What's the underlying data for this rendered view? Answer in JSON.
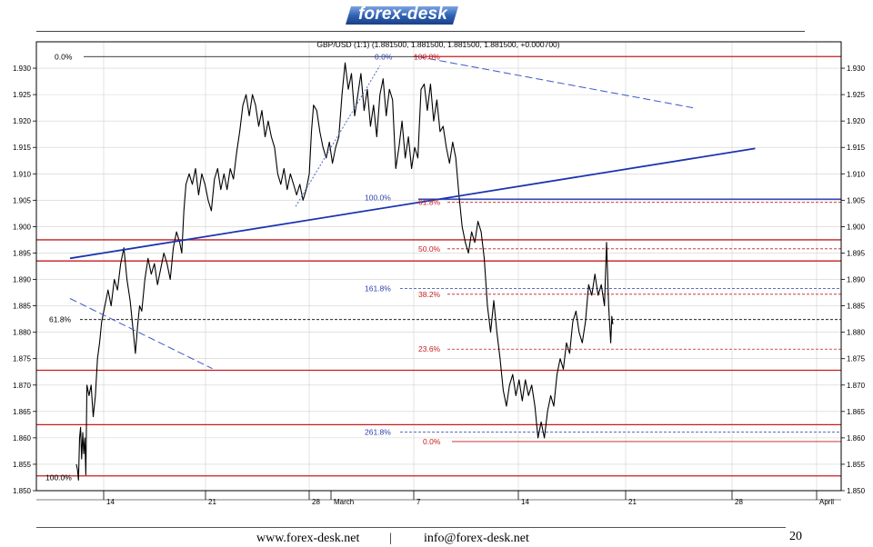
{
  "header": {
    "logo_text": "forex-desk",
    "logo_color": "#2f63b5"
  },
  "footer": {
    "website": "www.forex-desk.net",
    "separator": "|",
    "email": "info@forex-desk.net",
    "page_number": "20"
  },
  "chart_data": {
    "type": "line",
    "title": "GBP/USD (1:1) (1.881500, 1.881500, 1.881500, 1.881500, +0.000700)",
    "x_labels": [
      "14",
      "21",
      "28",
      "March",
      "7",
      "14",
      "21",
      "28",
      "April"
    ],
    "ylim": [
      1.85,
      1.935
    ],
    "y_ticks": [
      1.85,
      1.855,
      1.86,
      1.865,
      1.87,
      1.875,
      1.88,
      1.885,
      1.89,
      1.895,
      1.9,
      1.905,
      1.91,
      1.915,
      1.92,
      1.925,
      1.93
    ],
    "grid": true,
    "series": [
      {
        "color": "#000000",
        "points": [
          [
            0.0,
            1.855
          ],
          [
            0.01,
            1.854
          ],
          [
            0.02,
            1.852
          ],
          [
            0.03,
            1.86
          ],
          [
            0.04,
            1.862
          ],
          [
            0.05,
            1.856
          ],
          [
            0.06,
            1.861
          ],
          [
            0.07,
            1.857
          ],
          [
            0.08,
            1.86
          ],
          [
            0.09,
            1.853
          ],
          [
            0.1,
            1.87
          ],
          [
            0.12,
            1.868
          ],
          [
            0.14,
            1.87
          ],
          [
            0.16,
            1.864
          ],
          [
            0.18,
            1.868
          ],
          [
            0.2,
            1.875
          ],
          [
            0.22,
            1.878
          ],
          [
            0.24,
            1.882
          ],
          [
            0.27,
            1.885
          ],
          [
            0.3,
            1.888
          ],
          [
            0.33,
            1.885
          ],
          [
            0.36,
            1.89
          ],
          [
            0.39,
            1.888
          ],
          [
            0.42,
            1.893
          ],
          [
            0.45,
            1.896
          ],
          [
            0.48,
            1.89
          ],
          [
            0.51,
            1.886
          ],
          [
            0.54,
            1.88
          ],
          [
            0.56,
            1.876
          ],
          [
            0.58,
            1.881
          ],
          [
            0.6,
            1.885
          ],
          [
            0.62,
            1.884
          ],
          [
            0.65,
            1.89
          ],
          [
            0.68,
            1.894
          ],
          [
            0.71,
            1.891
          ],
          [
            0.74,
            1.893
          ],
          [
            0.77,
            1.889
          ],
          [
            0.8,
            1.892
          ],
          [
            0.83,
            1.895
          ],
          [
            0.86,
            1.893
          ],
          [
            0.89,
            1.89
          ],
          [
            0.92,
            1.896
          ],
          [
            0.95,
            1.899
          ],
          [
            0.98,
            1.897
          ],
          [
            1.0,
            1.895
          ],
          [
            1.02,
            1.903
          ],
          [
            1.04,
            1.908
          ],
          [
            1.07,
            1.91
          ],
          [
            1.1,
            1.908
          ],
          [
            1.13,
            1.911
          ],
          [
            1.16,
            1.906
          ],
          [
            1.19,
            1.91
          ],
          [
            1.22,
            1.908
          ],
          [
            1.25,
            1.905
          ],
          [
            1.28,
            1.903
          ],
          [
            1.31,
            1.909
          ],
          [
            1.34,
            1.911
          ],
          [
            1.37,
            1.907
          ],
          [
            1.4,
            1.91
          ],
          [
            1.43,
            1.907
          ],
          [
            1.46,
            1.911
          ],
          [
            1.49,
            1.909
          ],
          [
            1.52,
            1.914
          ],
          [
            1.55,
            1.918
          ],
          [
            1.58,
            1.923
          ],
          [
            1.61,
            1.925
          ],
          [
            1.64,
            1.921
          ],
          [
            1.67,
            1.925
          ],
          [
            1.7,
            1.923
          ],
          [
            1.73,
            1.919
          ],
          [
            1.76,
            1.922
          ],
          [
            1.79,
            1.917
          ],
          [
            1.82,
            1.92
          ],
          [
            1.85,
            1.917
          ],
          [
            1.88,
            1.915
          ],
          [
            1.91,
            1.91
          ],
          [
            1.94,
            1.908
          ],
          [
            1.97,
            1.911
          ],
          [
            2.0,
            1.907
          ],
          [
            2.03,
            1.91
          ],
          [
            2.06,
            1.908
          ],
          [
            2.09,
            1.906
          ],
          [
            2.12,
            1.908
          ],
          [
            2.15,
            1.905
          ],
          [
            2.18,
            1.907
          ],
          [
            2.21,
            1.91
          ],
          [
            2.23,
            1.918
          ],
          [
            2.25,
            1.923
          ],
          [
            2.28,
            1.922
          ],
          [
            2.31,
            1.918
          ],
          [
            2.34,
            1.915
          ],
          [
            2.37,
            1.913
          ],
          [
            2.4,
            1.916
          ],
          [
            2.43,
            1.912
          ],
          [
            2.46,
            1.915
          ],
          [
            2.49,
            1.917
          ],
          [
            2.52,
            1.925
          ],
          [
            2.55,
            1.931
          ],
          [
            2.58,
            1.926
          ],
          [
            2.61,
            1.929
          ],
          [
            2.64,
            1.921
          ],
          [
            2.67,
            1.925
          ],
          [
            2.7,
            1.929
          ],
          [
            2.73,
            1.922
          ],
          [
            2.76,
            1.926
          ],
          [
            2.79,
            1.919
          ],
          [
            2.82,
            1.923
          ],
          [
            2.85,
            1.917
          ],
          [
            2.88,
            1.925
          ],
          [
            2.91,
            1.928
          ],
          [
            2.94,
            1.921
          ],
          [
            2.97,
            1.926
          ],
          [
            3.0,
            1.924
          ],
          [
            3.03,
            1.911
          ],
          [
            3.06,
            1.915
          ],
          [
            3.09,
            1.92
          ],
          [
            3.12,
            1.913
          ],
          [
            3.15,
            1.917
          ],
          [
            3.18,
            1.911
          ],
          [
            3.21,
            1.915
          ],
          [
            3.24,
            1.913
          ],
          [
            3.27,
            1.926
          ],
          [
            3.3,
            1.927
          ],
          [
            3.33,
            1.922
          ],
          [
            3.36,
            1.927
          ],
          [
            3.39,
            1.92
          ],
          [
            3.42,
            1.924
          ],
          [
            3.45,
            1.918
          ],
          [
            3.48,
            1.919
          ],
          [
            3.51,
            1.915
          ],
          [
            3.54,
            1.912
          ],
          [
            3.57,
            1.916
          ],
          [
            3.6,
            1.913
          ],
          [
            3.63,
            1.906
          ],
          [
            3.66,
            1.9
          ],
          [
            3.69,
            1.897
          ],
          [
            3.72,
            1.895
          ],
          [
            3.75,
            1.899
          ],
          [
            3.78,
            1.897
          ],
          [
            3.81,
            1.901
          ],
          [
            3.84,
            1.899
          ],
          [
            3.87,
            1.894
          ],
          [
            3.9,
            1.885
          ],
          [
            3.93,
            1.88
          ],
          [
            3.96,
            1.886
          ],
          [
            3.99,
            1.88
          ],
          [
            4.02,
            1.875
          ],
          [
            4.05,
            1.869
          ],
          [
            4.08,
            1.866
          ],
          [
            4.11,
            1.87
          ],
          [
            4.14,
            1.872
          ],
          [
            4.17,
            1.868
          ],
          [
            4.2,
            1.871
          ],
          [
            4.23,
            1.867
          ],
          [
            4.26,
            1.871
          ],
          [
            4.29,
            1.868
          ],
          [
            4.32,
            1.87
          ],
          [
            4.35,
            1.866
          ],
          [
            4.38,
            1.86
          ],
          [
            4.41,
            1.863
          ],
          [
            4.44,
            1.86
          ],
          [
            4.47,
            1.865
          ],
          [
            4.5,
            1.868
          ],
          [
            4.53,
            1.866
          ],
          [
            4.56,
            1.872
          ],
          [
            4.59,
            1.875
          ],
          [
            4.62,
            1.873
          ],
          [
            4.65,
            1.878
          ],
          [
            4.68,
            1.876
          ],
          [
            4.71,
            1.882
          ],
          [
            4.74,
            1.884
          ],
          [
            4.77,
            1.88
          ],
          [
            4.8,
            1.878
          ],
          [
            4.83,
            1.882
          ],
          [
            4.86,
            1.889
          ],
          [
            4.89,
            1.887
          ],
          [
            4.92,
            1.891
          ],
          [
            4.95,
            1.887
          ],
          [
            4.98,
            1.889
          ],
          [
            5.01,
            1.885
          ],
          [
            5.03,
            1.897
          ],
          [
            5.05,
            1.885
          ],
          [
            5.07,
            1.878
          ],
          [
            5.08,
            1.883
          ],
          [
            5.09,
            1.8815
          ]
        ]
      },
      {
        "name": "trend-support",
        "color": "#1c33b0",
        "points": [
          [
            -0.06,
            1.894
          ],
          [
            6.44,
            1.9148
          ]
        ]
      },
      {
        "name": "trend-upper-dashed",
        "color": "#3a58c8",
        "points": [
          [
            3.24,
            1.9322
          ],
          [
            5.85,
            1.9225
          ]
        ]
      },
      {
        "name": "trend-lower-dashed",
        "color": "#3a58c8",
        "points": [
          [
            -0.06,
            1.8864
          ],
          [
            1.29,
            1.8731
          ]
        ]
      },
      {
        "name": "swing-dotted",
        "color": "#3a58c8",
        "points": [
          [
            2.08,
            1.9038
          ],
          [
            2.88,
            1.9305
          ]
        ]
      }
    ],
    "horizontal_lines": [
      {
        "value": 1.9322,
        "color": "#c41e1e"
      },
      {
        "value": 1.9052,
        "color": "#1c33b0"
      },
      {
        "value": 1.8975,
        "color": "#c41e1e"
      },
      {
        "value": 1.8935,
        "color": "#c41e1e"
      },
      {
        "value": 1.8728,
        "color": "#c41e1e"
      },
      {
        "value": 1.8625,
        "color": "#c41e1e"
      },
      {
        "value": 1.8528,
        "color": "#c41e1e"
      }
    ],
    "fib_annotations": [
      {
        "label": "0.0%",
        "value": 1.9322,
        "color": "#000000"
      },
      {
        "label": "61.8%",
        "value": 1.8824,
        "color": "#000000"
      },
      {
        "label": "100.0%",
        "value": 1.8525,
        "color": "#000000"
      },
      {
        "label": "0.0%",
        "value": 1.9322,
        "color": "#2a3fb0"
      },
      {
        "label": "100.0%",
        "value": 1.9322,
        "color": "#c41e1e"
      },
      {
        "label": "100.0%",
        "value": 1.9055,
        "color": "#2a3fb0"
      },
      {
        "label": "61.8%",
        "value": 1.9046,
        "color": "#c41e1e"
      },
      {
        "label": "50.0%",
        "value": 1.8958,
        "color": "#c41e1e"
      },
      {
        "label": "161.8%",
        "value": 1.8883,
        "color": "#2a3fb0"
      },
      {
        "label": "38.2%",
        "value": 1.8872,
        "color": "#c41e1e"
      },
      {
        "label": "23.6%",
        "value": 1.8768,
        "color": "#c41e1e"
      },
      {
        "label": "261.8%",
        "value": 1.8611,
        "color": "#2a3fb0"
      },
      {
        "label": "0.0%",
        "value": 1.8593,
        "color": "#c41e1e"
      }
    ]
  }
}
